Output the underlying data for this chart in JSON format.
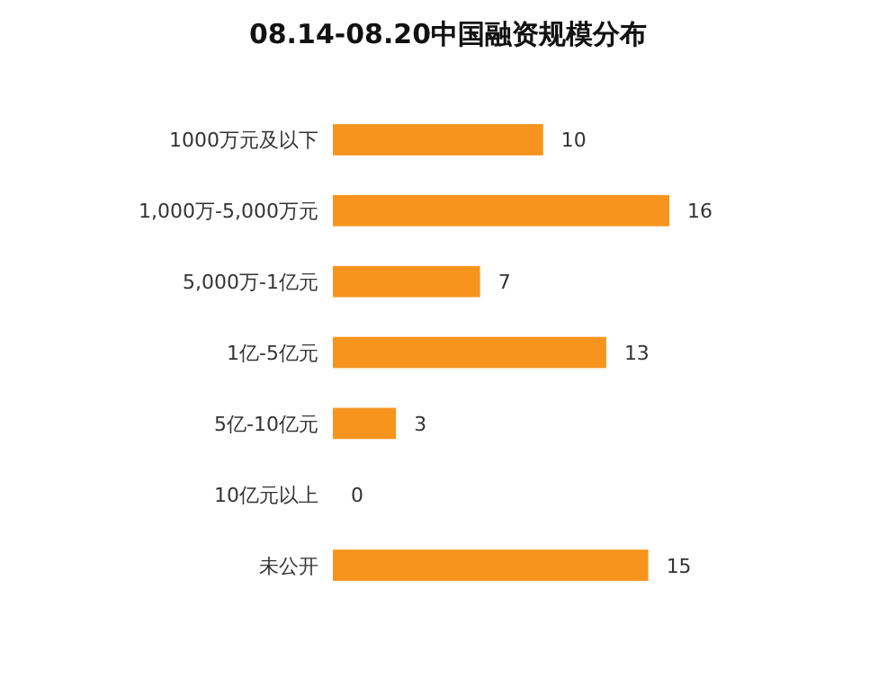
{
  "chart_data": {
    "type": "bar",
    "orientation": "horizontal",
    "title": "08.14-08.20中国融资规模分布",
    "categories": [
      "1000万元及以下",
      "1,000万-5,000万元",
      "5,000万-1亿元",
      "1亿-5亿元",
      "5亿-10亿元",
      "10亿元以上",
      "未公开"
    ],
    "values": [
      10,
      16,
      7,
      13,
      3,
      0,
      15
    ],
    "color": "#f7941d",
    "data_labels": true
  }
}
